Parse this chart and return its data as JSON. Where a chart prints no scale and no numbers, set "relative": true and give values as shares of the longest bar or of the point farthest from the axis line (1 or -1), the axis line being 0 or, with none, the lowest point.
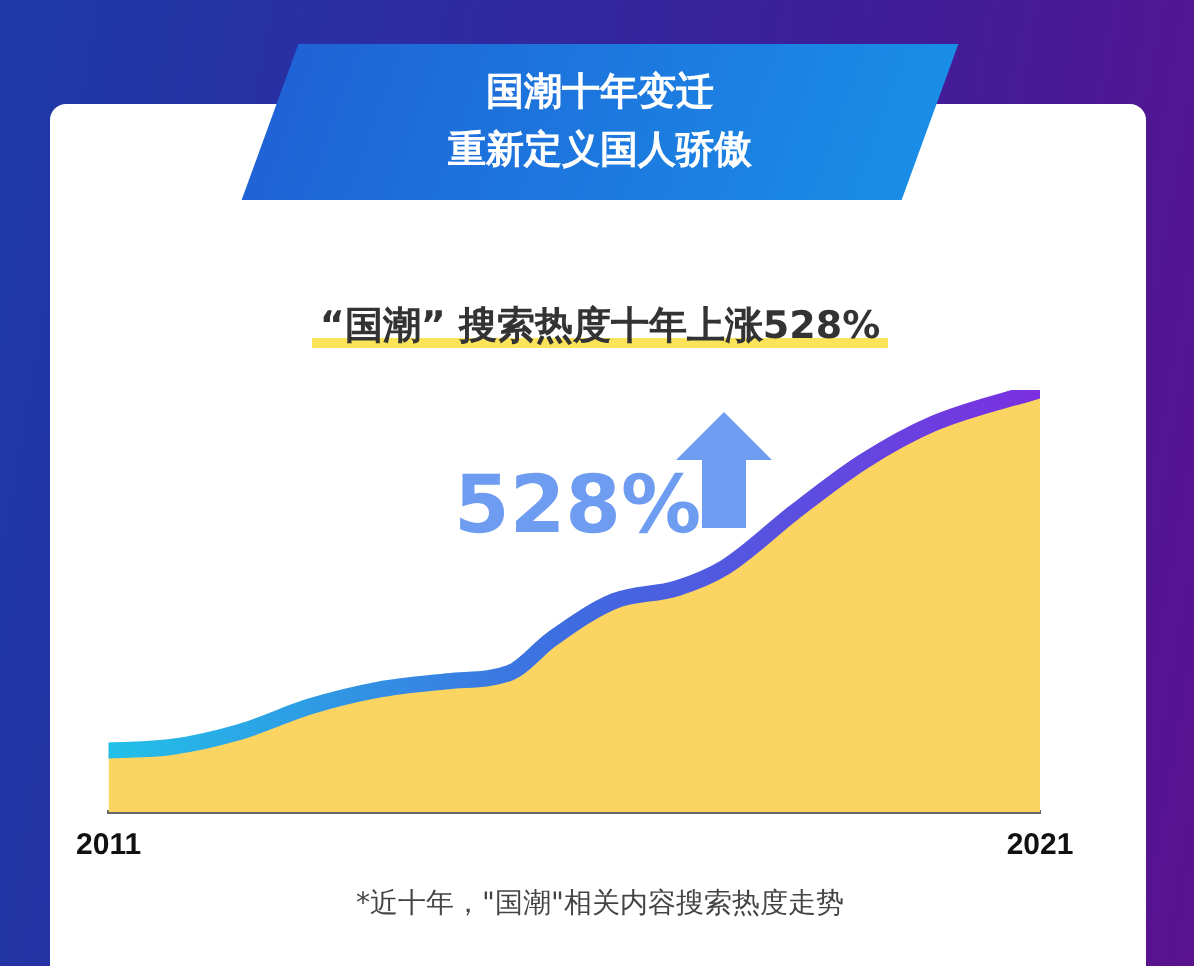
{
  "chart_data": {
    "type": "area",
    "title": "国潮十年变迁",
    "subtitle": "重新定义国人骄傲",
    "annotations": [
      "“国潮” 搜索热度十年上涨528%",
      "528%",
      "*近十年，\"国潮\"相关内容搜索热度走势"
    ],
    "relative": true,
    "xlim": [
      2011,
      2021
    ],
    "xticks": [
      2011,
      2021
    ],
    "grid": false,
    "legend": false,
    "series": [
      {
        "color": "#fcd462",
        "x": [
          2011,
          2011.67,
          2012.41,
          2013.16,
          2013.9,
          2014.64,
          2015.31,
          2015.76,
          2016.43,
          2017.1,
          2017.62,
          2018.36,
          2019.1,
          2019.85,
          2021
        ],
        "values": [
          0.146,
          0.154,
          0.19,
          0.25,
          0.29,
          0.31,
          0.33,
          0.41,
          0.5,
          0.53,
          0.58,
          0.71,
          0.83,
          0.92,
          1
        ]
      }
    ]
  }
}
